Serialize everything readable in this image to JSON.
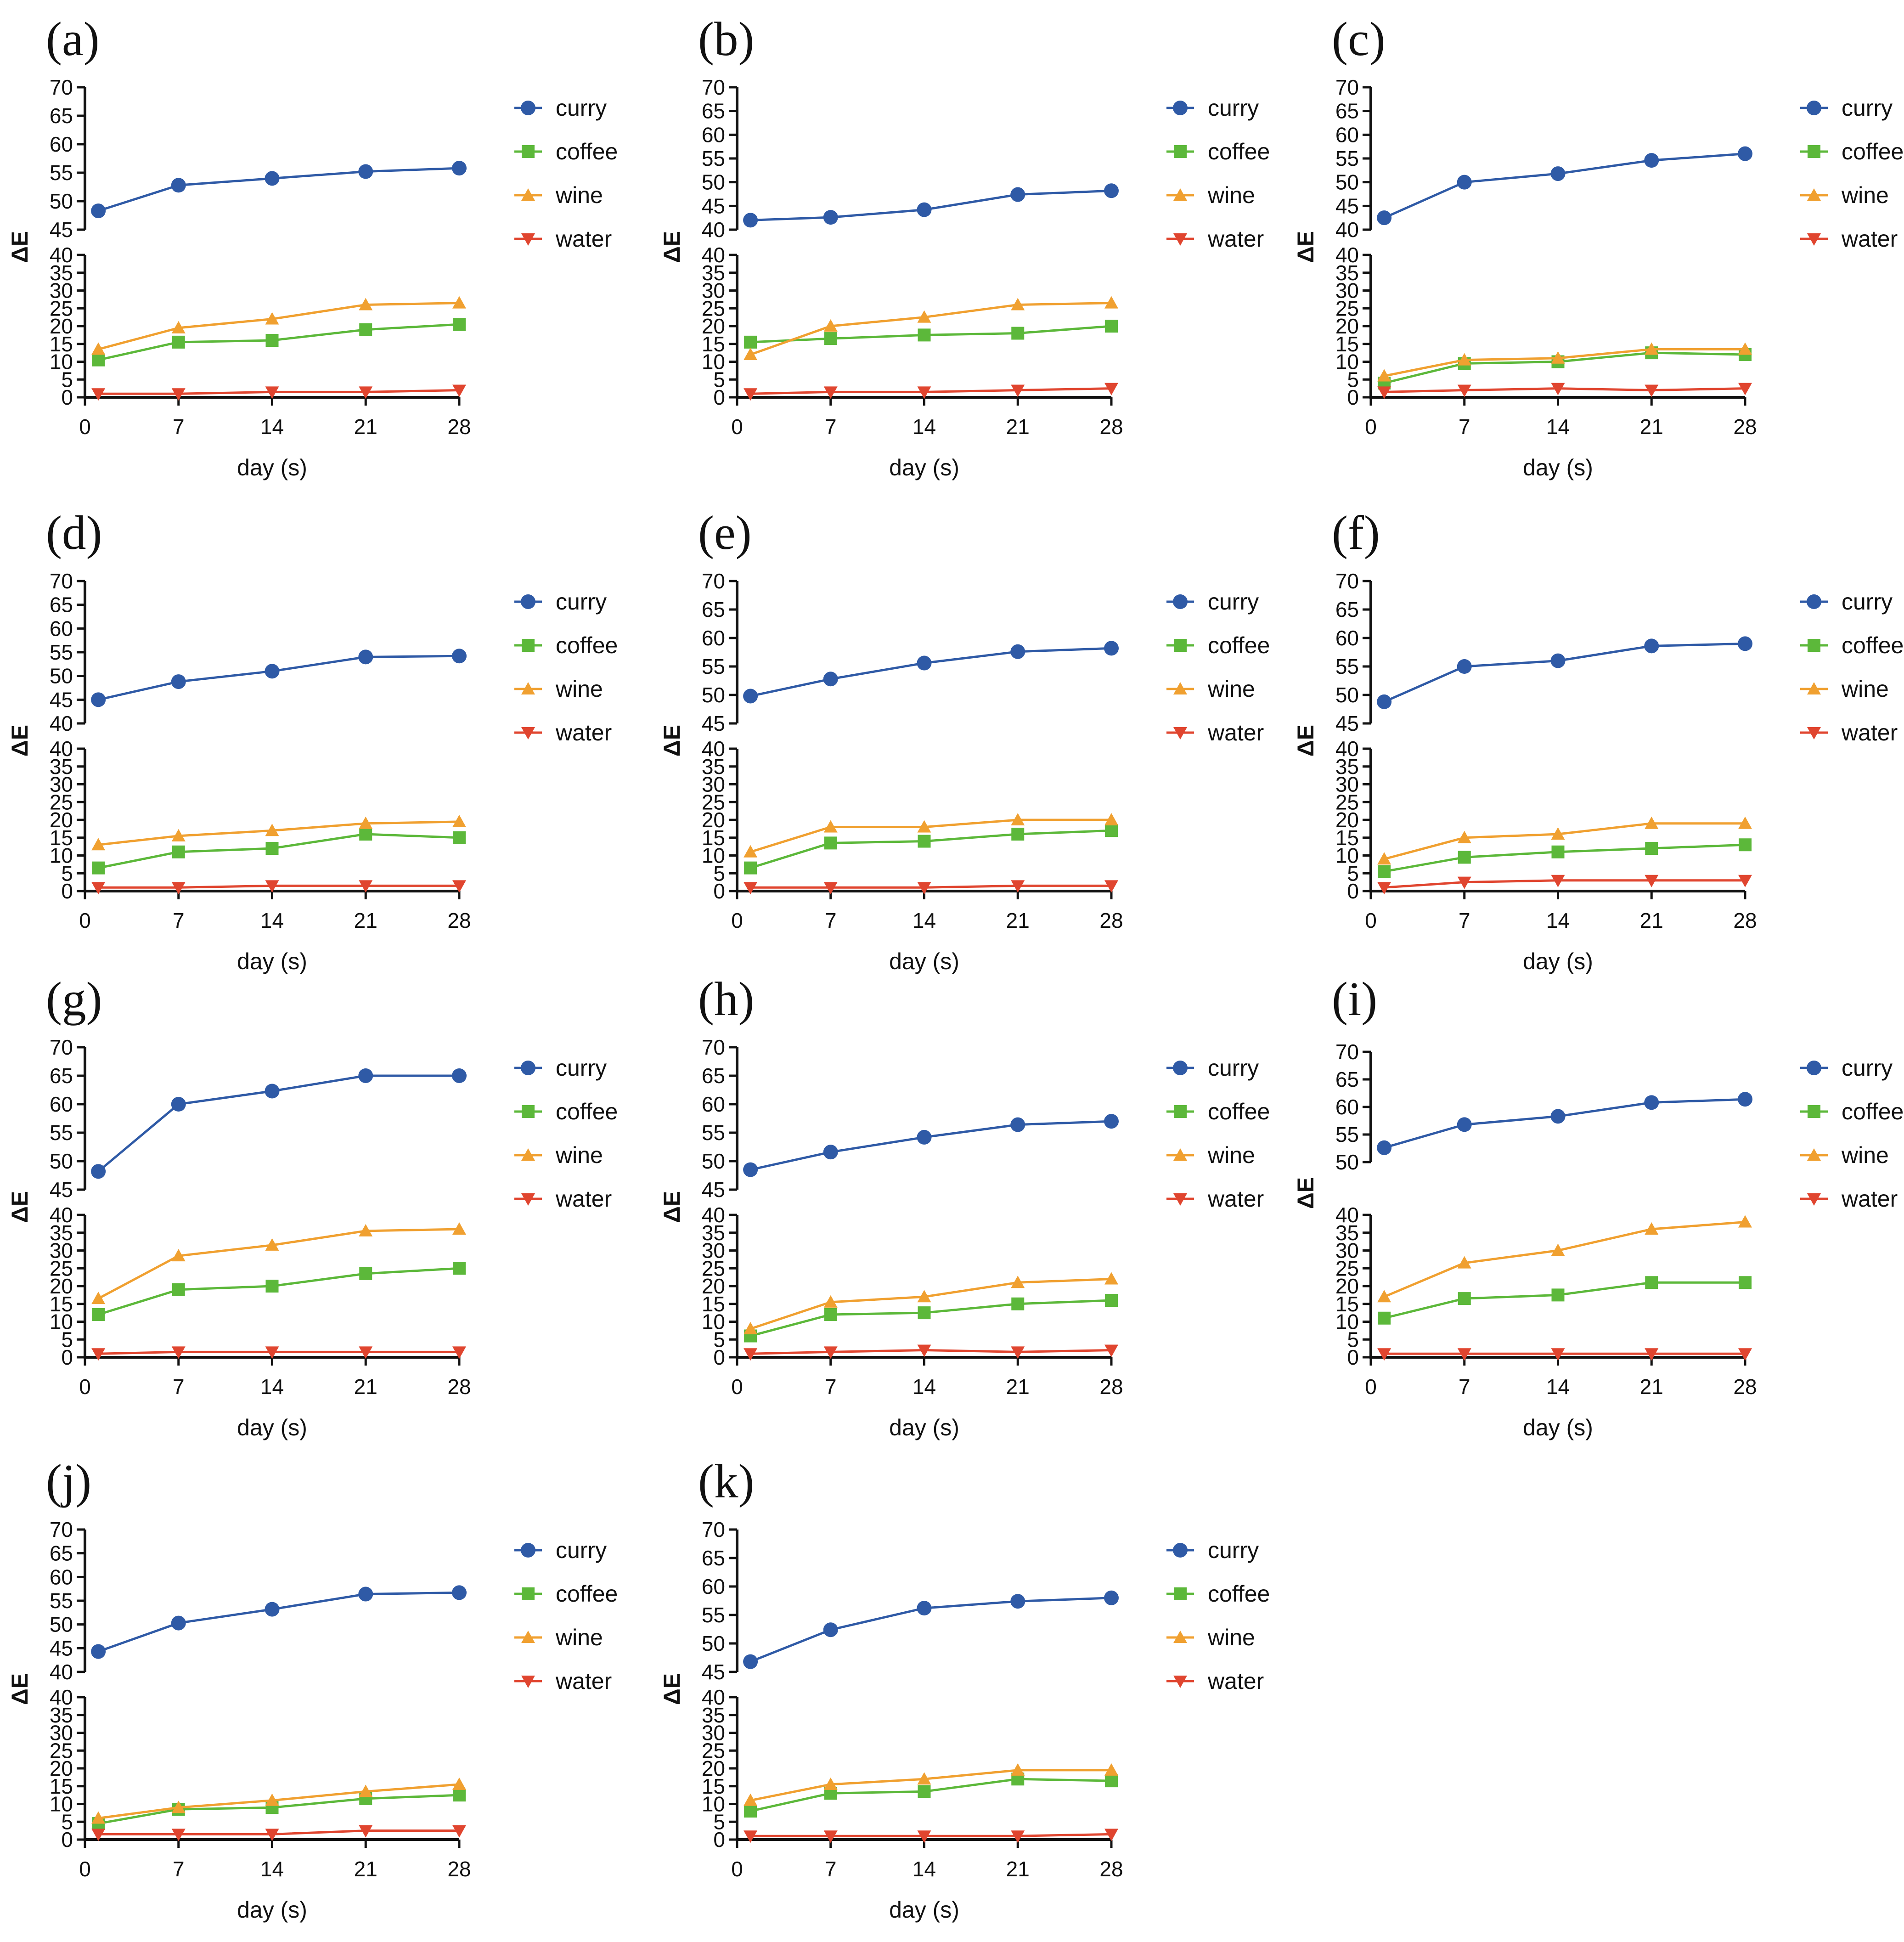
{
  "colors": {
    "curry": "#2f5aa6",
    "coffee": "#5cb83a",
    "wine": "#f0a030",
    "water": "#e0452f"
  },
  "legend": [
    "curry",
    "coffee",
    "wine",
    "water"
  ],
  "chart_data": [
    {
      "type": "line",
      "panel": "(a)",
      "xlabel": "day (s)",
      "ylabel": "ΔE",
      "x": [
        1,
        7,
        14,
        21,
        28
      ],
      "xticks": [
        0,
        7,
        14,
        21,
        28
      ],
      "upper_ylim": [
        45,
        70
      ],
      "upper_yticks": [
        45,
        50,
        55,
        60,
        65,
        70
      ],
      "lower_ylim": [
        0,
        40
      ],
      "lower_yticks": [
        0,
        5,
        10,
        15,
        20,
        25,
        30,
        35,
        40
      ],
      "series": [
        {
          "name": "curry",
          "values": [
            48.3,
            52.8,
            54.0,
            55.2,
            55.8
          ]
        },
        {
          "name": "coffee",
          "values": [
            10.5,
            15.5,
            16.0,
            19.0,
            20.5
          ]
        },
        {
          "name": "wine",
          "values": [
            13.5,
            19.5,
            22.0,
            26.0,
            26.5
          ]
        },
        {
          "name": "water",
          "values": [
            1.0,
            1.0,
            1.5,
            1.5,
            2.0
          ]
        }
      ]
    },
    {
      "type": "line",
      "panel": "(b)",
      "xlabel": "day (s)",
      "ylabel": "ΔE",
      "x": [
        1,
        7,
        14,
        21,
        28
      ],
      "xticks": [
        0,
        7,
        14,
        21,
        28
      ],
      "upper_ylim": [
        40,
        70
      ],
      "upper_yticks": [
        40,
        45,
        50,
        55,
        60,
        65,
        70
      ],
      "lower_ylim": [
        0,
        40
      ],
      "lower_yticks": [
        0,
        5,
        10,
        15,
        20,
        25,
        30,
        35,
        40
      ],
      "series": [
        {
          "name": "curry",
          "values": [
            42.0,
            42.6,
            44.2,
            47.4,
            48.2
          ]
        },
        {
          "name": "coffee",
          "values": [
            15.5,
            16.5,
            17.5,
            18.0,
            20.0
          ]
        },
        {
          "name": "wine",
          "values": [
            12.0,
            20.0,
            22.5,
            26.0,
            26.5
          ]
        },
        {
          "name": "water",
          "values": [
            1.0,
            1.5,
            1.5,
            2.0,
            2.5
          ]
        }
      ]
    },
    {
      "type": "line",
      "panel": "(c)",
      "xlabel": "day (s)",
      "ylabel": "ΔE",
      "x": [
        1,
        7,
        14,
        21,
        28
      ],
      "xticks": [
        0,
        7,
        14,
        21,
        28
      ],
      "upper_ylim": [
        40,
        70
      ],
      "upper_yticks": [
        40,
        45,
        50,
        55,
        60,
        65,
        70
      ],
      "lower_ylim": [
        0,
        40
      ],
      "lower_yticks": [
        0,
        5,
        10,
        15,
        20,
        25,
        30,
        35,
        40
      ],
      "series": [
        {
          "name": "curry",
          "values": [
            42.5,
            50.0,
            51.8,
            54.6,
            56.0
          ]
        },
        {
          "name": "coffee",
          "values": [
            4.0,
            9.5,
            10.0,
            12.5,
            12.0
          ]
        },
        {
          "name": "wine",
          "values": [
            6.0,
            10.5,
            11.0,
            13.5,
            13.5
          ]
        },
        {
          "name": "water",
          "values": [
            1.5,
            2.0,
            2.5,
            2.0,
            2.5
          ]
        }
      ]
    },
    {
      "type": "line",
      "panel": "(d)",
      "xlabel": "day (s)",
      "ylabel": "ΔE",
      "x": [
        1,
        7,
        14,
        21,
        28
      ],
      "xticks": [
        0,
        7,
        14,
        21,
        28
      ],
      "upper_ylim": [
        40,
        70
      ],
      "upper_yticks": [
        40,
        45,
        50,
        55,
        60,
        65,
        70
      ],
      "lower_ylim": [
        0,
        40
      ],
      "lower_yticks": [
        0,
        5,
        10,
        15,
        20,
        25,
        30,
        35,
        40
      ],
      "series": [
        {
          "name": "curry",
          "values": [
            45.0,
            48.8,
            51.0,
            54.0,
            54.2
          ]
        },
        {
          "name": "coffee",
          "values": [
            6.5,
            11.0,
            12.0,
            16.0,
            15.0
          ]
        },
        {
          "name": "wine",
          "values": [
            13.0,
            15.5,
            17.0,
            19.0,
            19.5
          ]
        },
        {
          "name": "water",
          "values": [
            1.0,
            1.0,
            1.5,
            1.5,
            1.5
          ]
        }
      ]
    },
    {
      "type": "line",
      "panel": "(e)",
      "xlabel": "day (s)",
      "ylabel": "ΔE",
      "x": [
        1,
        7,
        14,
        21,
        28
      ],
      "xticks": [
        0,
        7,
        14,
        21,
        28
      ],
      "upper_ylim": [
        45,
        70
      ],
      "upper_yticks": [
        45,
        50,
        55,
        60,
        65,
        70
      ],
      "lower_ylim": [
        0,
        40
      ],
      "lower_yticks": [
        0,
        5,
        10,
        15,
        20,
        25,
        30,
        35,
        40
      ],
      "series": [
        {
          "name": "curry",
          "values": [
            49.8,
            52.8,
            55.6,
            57.6,
            58.2
          ]
        },
        {
          "name": "coffee",
          "values": [
            6.5,
            13.5,
            14.0,
            16.0,
            17.0
          ]
        },
        {
          "name": "wine",
          "values": [
            11.0,
            18.0,
            18.0,
            20.0,
            20.0
          ]
        },
        {
          "name": "water",
          "values": [
            1.0,
            1.0,
            1.0,
            1.5,
            1.5
          ]
        }
      ]
    },
    {
      "type": "line",
      "panel": "(f)",
      "xlabel": "day (s)",
      "ylabel": "ΔE",
      "x": [
        1,
        7,
        14,
        21,
        28
      ],
      "xticks": [
        0,
        7,
        14,
        21,
        28
      ],
      "upper_ylim": [
        45,
        70
      ],
      "upper_yticks": [
        45,
        50,
        55,
        60,
        65,
        70
      ],
      "lower_ylim": [
        0,
        40
      ],
      "lower_yticks": [
        0,
        5,
        10,
        15,
        20,
        25,
        30,
        35,
        40
      ],
      "series": [
        {
          "name": "curry",
          "values": [
            48.8,
            55.0,
            56.0,
            58.6,
            59.0
          ]
        },
        {
          "name": "coffee",
          "values": [
            5.5,
            9.5,
            11.0,
            12.0,
            13.0
          ]
        },
        {
          "name": "wine",
          "values": [
            9.0,
            15.0,
            16.0,
            19.0,
            19.0
          ]
        },
        {
          "name": "water",
          "values": [
            1.0,
            2.5,
            3.0,
            3.0,
            3.0
          ]
        }
      ]
    },
    {
      "type": "line",
      "panel": "(g)",
      "xlabel": "day (s)",
      "ylabel": "ΔE",
      "x": [
        1,
        7,
        14,
        21,
        28
      ],
      "xticks": [
        0,
        7,
        14,
        21,
        28
      ],
      "upper_ylim": [
        45,
        70
      ],
      "upper_yticks": [
        45,
        50,
        55,
        60,
        65,
        70
      ],
      "lower_ylim": [
        0,
        40
      ],
      "lower_yticks": [
        0,
        5,
        10,
        15,
        20,
        25,
        30,
        35,
        40
      ],
      "series": [
        {
          "name": "curry",
          "values": [
            48.2,
            60.0,
            62.3,
            65.0,
            65.0
          ]
        },
        {
          "name": "coffee",
          "values": [
            12.0,
            19.0,
            20.0,
            23.5,
            25.0
          ]
        },
        {
          "name": "wine",
          "values": [
            16.5,
            28.5,
            31.5,
            35.5,
            36.0
          ]
        },
        {
          "name": "water",
          "values": [
            1.0,
            1.5,
            1.5,
            1.5,
            1.5
          ]
        }
      ]
    },
    {
      "type": "line",
      "panel": "(h)",
      "xlabel": "day (s)",
      "ylabel": "ΔE",
      "x": [
        1,
        7,
        14,
        21,
        28
      ],
      "xticks": [
        0,
        7,
        14,
        21,
        28
      ],
      "upper_ylim": [
        45,
        70
      ],
      "upper_yticks": [
        45,
        50,
        55,
        60,
        65,
        70
      ],
      "lower_ylim": [
        0,
        40
      ],
      "lower_yticks": [
        0,
        5,
        10,
        15,
        20,
        25,
        30,
        35,
        40
      ],
      "series": [
        {
          "name": "curry",
          "values": [
            48.5,
            51.6,
            54.2,
            56.4,
            57.0
          ]
        },
        {
          "name": "coffee",
          "values": [
            6.0,
            12.0,
            12.5,
            15.0,
            16.0
          ]
        },
        {
          "name": "wine",
          "values": [
            8.0,
            15.5,
            17.0,
            21.0,
            22.0
          ]
        },
        {
          "name": "water",
          "values": [
            1.0,
            1.5,
            2.0,
            1.5,
            2.0
          ]
        }
      ]
    },
    {
      "type": "line",
      "panel": "(i)",
      "xlabel": "day (s)",
      "ylabel": "ΔE",
      "x": [
        1,
        7,
        14,
        21,
        28
      ],
      "xticks": [
        0,
        7,
        14,
        21,
        28
      ],
      "upper_ylim": [
        50,
        70
      ],
      "upper_yticks": [
        50,
        55,
        60,
        65,
        70
      ],
      "lower_ylim": [
        0,
        40
      ],
      "lower_yticks": [
        0,
        5,
        10,
        15,
        20,
        25,
        30,
        35,
        40
      ],
      "series": [
        {
          "name": "curry",
          "values": [
            52.6,
            56.8,
            58.3,
            60.8,
            61.4
          ]
        },
        {
          "name": "coffee",
          "values": [
            11.0,
            16.5,
            17.5,
            21.0,
            21.0
          ]
        },
        {
          "name": "wine",
          "values": [
            17.0,
            26.5,
            30.0,
            36.0,
            38.0
          ]
        },
        {
          "name": "water",
          "values": [
            1.0,
            1.0,
            1.0,
            1.0,
            1.0
          ]
        }
      ]
    },
    {
      "type": "line",
      "panel": "(j)",
      "xlabel": "day (s)",
      "ylabel": "ΔE",
      "x": [
        1,
        7,
        14,
        21,
        28
      ],
      "xticks": [
        0,
        7,
        14,
        21,
        28
      ],
      "upper_ylim": [
        40,
        70
      ],
      "upper_yticks": [
        40,
        45,
        50,
        55,
        60,
        65,
        70
      ],
      "lower_ylim": [
        0,
        40
      ],
      "lower_yticks": [
        0,
        5,
        10,
        15,
        20,
        25,
        30,
        35,
        40
      ],
      "series": [
        {
          "name": "curry",
          "values": [
            44.3,
            50.3,
            53.2,
            56.4,
            56.7
          ]
        },
        {
          "name": "coffee",
          "values": [
            4.5,
            8.5,
            9.0,
            11.5,
            12.5
          ]
        },
        {
          "name": "wine",
          "values": [
            6.0,
            9.0,
            11.0,
            13.5,
            15.5
          ]
        },
        {
          "name": "water",
          "values": [
            1.5,
            1.5,
            1.5,
            2.5,
            2.5
          ]
        }
      ]
    },
    {
      "type": "line",
      "panel": "(k)",
      "xlabel": "day (s)",
      "ylabel": "ΔE",
      "x": [
        1,
        7,
        14,
        21,
        28
      ],
      "xticks": [
        0,
        7,
        14,
        21,
        28
      ],
      "upper_ylim": [
        45,
        70
      ],
      "upper_yticks": [
        45,
        50,
        55,
        60,
        65,
        70
      ],
      "lower_ylim": [
        0,
        40
      ],
      "lower_yticks": [
        0,
        5,
        10,
        15,
        20,
        25,
        30,
        35,
        40
      ],
      "series": [
        {
          "name": "curry",
          "values": [
            46.8,
            52.4,
            56.2,
            57.4,
            58.0
          ]
        },
        {
          "name": "coffee",
          "values": [
            8.0,
            13.0,
            13.5,
            17.0,
            16.5
          ]
        },
        {
          "name": "wine",
          "values": [
            11.0,
            15.5,
            17.0,
            19.5,
            19.5
          ]
        },
        {
          "name": "water",
          "values": [
            1.0,
            1.0,
            1.0,
            1.0,
            1.5
          ]
        }
      ]
    }
  ]
}
